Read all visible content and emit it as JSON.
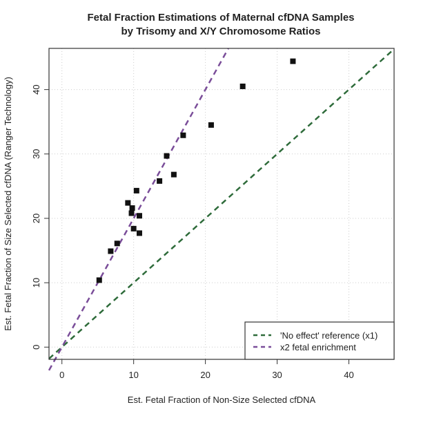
{
  "chart_data": {
    "type": "scatter",
    "title": "Fetal Fraction Estimations of Maternal cfDNA Samples\nby Trisomy and X/Y Chromosome Ratios",
    "title_lines": [
      "Fetal Fraction Estimations of Maternal cfDNA Samples",
      "by Trisomy and X/Y Chromosome Ratios"
    ],
    "xlabel": "Est. Fetal Fraction of Non-Size Selected cfDNA",
    "ylabel": "Est. Fetal Fraction of Size Selected cfDNA (Ranger Technology)",
    "xlim": [
      -1.8,
      46.3
    ],
    "ylim": [
      -1.9,
      46.4
    ],
    "xticks": [
      0,
      10,
      20,
      30,
      40
    ],
    "yticks": [
      0,
      10,
      20,
      30,
      40
    ],
    "grid": true,
    "points": [
      {
        "x": 5.2,
        "y": 10.4
      },
      {
        "x": 6.8,
        "y": 14.9
      },
      {
        "x": 7.7,
        "y": 16.1
      },
      {
        "x": 9.2,
        "y": 22.4
      },
      {
        "x": 9.8,
        "y": 21.6
      },
      {
        "x": 9.7,
        "y": 20.8
      },
      {
        "x": 10.0,
        "y": 18.4
      },
      {
        "x": 10.8,
        "y": 17.7
      },
      {
        "x": 10.8,
        "y": 20.4
      },
      {
        "x": 10.4,
        "y": 24.3
      },
      {
        "x": 13.6,
        "y": 25.8
      },
      {
        "x": 14.6,
        "y": 29.7
      },
      {
        "x": 15.6,
        "y": 26.8
      },
      {
        "x": 16.9,
        "y": 32.9
      },
      {
        "x": 20.8,
        "y": 34.5
      },
      {
        "x": 25.2,
        "y": 40.5
      },
      {
        "x": 32.2,
        "y": 44.4
      }
    ],
    "point_color": "#111111",
    "lines": [
      {
        "name": "'No effect' reference (x1)",
        "slope": 1,
        "color": "#2e6b3a",
        "style": "dashed"
      },
      {
        "name": "x2 fetal enrichment",
        "slope": 2,
        "color": "#7a4d99",
        "style": "dashed"
      }
    ],
    "legend_position": "bottom-right"
  }
}
